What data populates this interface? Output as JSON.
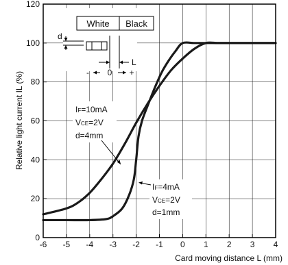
{
  "chart_data": {
    "type": "line",
    "xlabel": "Card moving distance L (mm)",
    "ylabel": "Relative light current IL (%)",
    "xlim": [
      -6,
      4
    ],
    "ylim": [
      0,
      120
    ],
    "xticks": [
      -6,
      -5,
      -4,
      -3,
      -2,
      -1,
      0,
      1,
      2,
      3,
      4
    ],
    "yticks": [
      0,
      20,
      40,
      60,
      80,
      100,
      120
    ],
    "grid": true,
    "series": [
      {
        "x": [
          -6,
          -5,
          -4.5,
          -4,
          -3.5,
          -3,
          -2.5,
          -2,
          -1.5,
          -1,
          -0.5,
          0,
          0.5,
          1,
          1.5,
          2,
          3,
          4
        ],
        "y": [
          12,
          15,
          18,
          23,
          30,
          38,
          48,
          59,
          69,
          78,
          86,
          92,
          97,
          100,
          100,
          100,
          100,
          100
        ],
        "condition": {
          "IF": "10mA",
          "VCE": "2V",
          "d": "4mm"
        }
      },
      {
        "x": [
          -6,
          -5,
          -4,
          -3.3,
          -3,
          -2.6,
          -2.3,
          -2.1,
          -2,
          -1.9,
          -1.75,
          -1.5,
          -1.2,
          -0.9,
          -0.6,
          -0.3,
          0,
          0.5,
          1,
          2,
          3,
          4
        ],
        "y": [
          9,
          9,
          9,
          9.5,
          11,
          15,
          22,
          30,
          40,
          52,
          60,
          68,
          77,
          85,
          91,
          96,
          100,
          100,
          100,
          100,
          100,
          100
        ],
        "condition": {
          "IF": "4mA",
          "VCE": "2V",
          "d": "1mm"
        }
      }
    ],
    "annotations": {
      "upper_if_label": "I",
      "upper_if_sub": "F",
      "upper_if_value": "=10mA",
      "upper_vce_label": "V",
      "upper_vce_sub": "CE",
      "upper_vce_value": "=2V",
      "upper_d": "d=4mm",
      "lower_if_label": "I",
      "lower_if_sub": "F",
      "lower_if_value": "=4mA",
      "lower_vce_label": "V",
      "lower_vce_sub": "CE",
      "lower_vce_value": "=2V",
      "lower_d": "d=1mm"
    },
    "inset": {
      "white_label": "White",
      "black_label": "Black",
      "d_label": "d",
      "L_label": "L",
      "minus_label": "-",
      "zero_label": "0",
      "plus_label": "+"
    }
  }
}
